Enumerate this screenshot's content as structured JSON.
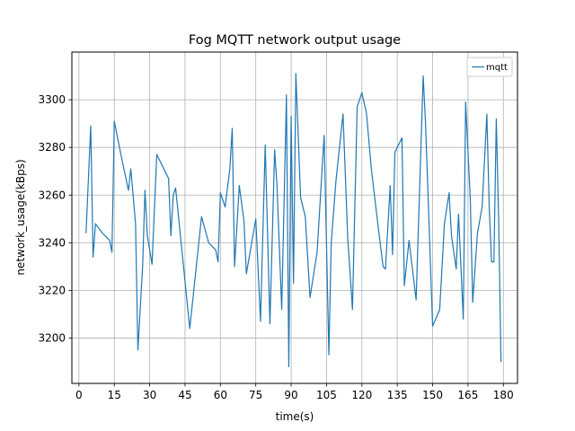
{
  "chart_data": {
    "type": "line",
    "title": "Fog MQTT network output usage",
    "xlabel": "time(s)",
    "ylabel": "network_usage(kBps)",
    "xlim": [
      -3,
      186
    ],
    "ylim": [
      3181,
      3320
    ],
    "xticks": [
      0,
      15,
      30,
      45,
      60,
      75,
      90,
      105,
      120,
      135,
      150,
      165,
      180
    ],
    "yticks": [
      3200,
      3220,
      3240,
      3260,
      3280,
      3300
    ],
    "grid": true,
    "legend_position": "top-right",
    "series": [
      {
        "name": "mqtt",
        "color": "#1f77b4",
        "x": [
          3,
          5,
          6,
          7,
          10,
          13,
          14,
          15,
          18,
          21,
          22,
          24,
          25,
          27,
          28,
          29,
          31,
          33,
          38,
          39,
          40,
          41,
          47,
          52,
          55,
          57,
          58,
          59,
          60,
          62,
          64,
          65,
          66,
          68,
          70,
          71,
          75,
          77,
          79,
          81,
          83,
          84,
          86,
          88,
          89,
          90,
          91,
          92,
          94,
          96,
          98,
          101,
          104,
          106,
          107,
          109,
          112,
          114,
          116,
          118,
          120,
          122,
          124,
          127,
          129,
          130,
          132,
          133,
          134,
          137,
          138,
          140,
          143,
          146,
          147,
          150,
          153,
          155,
          157,
          158,
          160,
          161,
          163,
          164,
          166,
          167,
          169,
          171,
          173,
          174,
          175,
          176,
          177,
          178,
          179
        ],
        "y": [
          3244,
          3289,
          3234,
          3248,
          3244,
          3241,
          3236,
          3291,
          3276,
          3262,
          3271,
          3248,
          3195,
          3230,
          3262,
          3243,
          3231,
          3277,
          3267,
          3243,
          3260,
          3263,
          3204,
          3251,
          3240,
          3238,
          3237,
          3232,
          3261,
          3255,
          3271,
          3288,
          3230,
          3264,
          3249,
          3227,
          3250,
          3207,
          3281,
          3206,
          3279,
          3264,
          3212,
          3302,
          3188,
          3293,
          3223,
          3311,
          3259,
          3251,
          3217,
          3236,
          3285,
          3193,
          3240,
          3266,
          3294,
          3242,
          3212,
          3297,
          3303,
          3294,
          3271,
          3246,
          3230,
          3229,
          3264,
          3235,
          3278,
          3284,
          3222,
          3241,
          3216,
          3310,
          3290,
          3205,
          3212,
          3248,
          3261,
          3243,
          3229,
          3252,
          3208,
          3299,
          3258,
          3215,
          3244,
          3255,
          3294,
          3255,
          3232,
          3232,
          3292,
          3250,
          3190
        ]
      }
    ]
  }
}
